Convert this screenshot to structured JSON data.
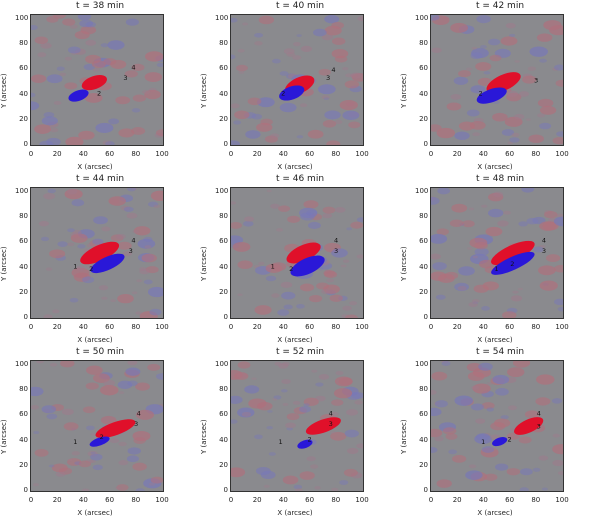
{
  "figure": {
    "x_axis_label": "X (arcsec)",
    "y_axis_label": "Y (arcsec)",
    "x_ticks": [
      "0",
      "20",
      "40",
      "60",
      "80",
      "100"
    ],
    "y_ticks": [
      "0",
      "20",
      "40",
      "60",
      "80",
      "100"
    ],
    "colors": {
      "background_gray": "#8a8a8e",
      "positive_polarity": "#e0102a",
      "negative_polarity": "#2a18d8"
    },
    "panels": [
      {
        "title": "t = 38 min",
        "labels": [
          "2",
          "4",
          "3"
        ]
      },
      {
        "title": "t = 40 min",
        "labels": [
          "2",
          "4",
          "3"
        ]
      },
      {
        "title": "t = 42 min",
        "labels": [
          "2",
          "3"
        ]
      },
      {
        "title": "t = 44 min",
        "labels": [
          "1",
          "2",
          "4",
          "3"
        ]
      },
      {
        "title": "t = 46 min",
        "labels": [
          "1",
          "2",
          "4",
          "3"
        ]
      },
      {
        "title": "t = 48 min",
        "labels": [
          "1",
          "2",
          "4",
          "3"
        ]
      },
      {
        "title": "t = 50 min",
        "labels": [
          "1",
          "2",
          "4",
          "3"
        ]
      },
      {
        "title": "t = 52 min",
        "labels": [
          "1",
          "2",
          "4",
          "3"
        ]
      },
      {
        "title": "t = 54 min",
        "labels": [
          "1",
          "2",
          "4",
          "3"
        ]
      }
    ]
  }
}
